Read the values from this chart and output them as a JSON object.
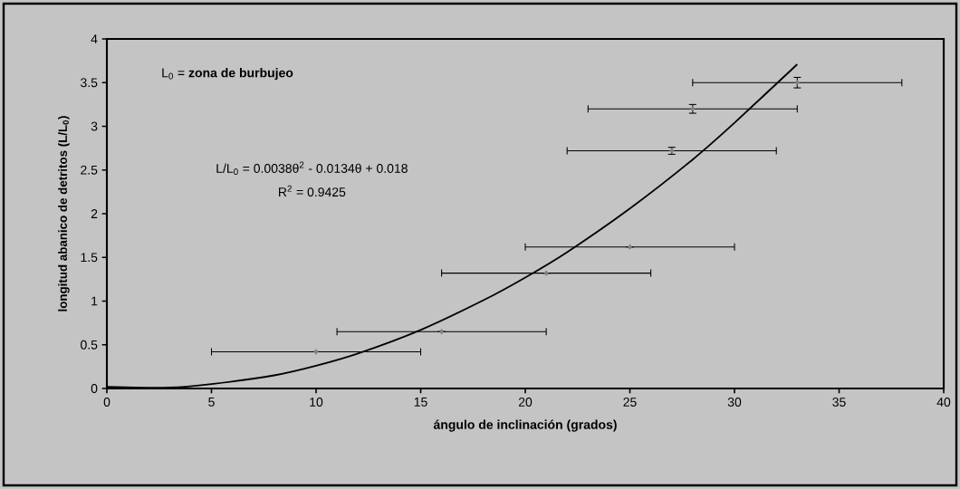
{
  "chart_data": {
    "type": "scatter",
    "xlabel": "ángulo de inclinación (grados)",
    "ylabel": "longitud abanico de detritos (L/L$_{0}$)",
    "xlim": [
      0,
      40
    ],
    "ylim": [
      0,
      4
    ],
    "xticks": [
      0,
      5,
      10,
      15,
      20,
      25,
      30,
      35,
      40
    ],
    "yticks": [
      0,
      0.5,
      1,
      1.5,
      2,
      2.5,
      3,
      3.5,
      4
    ],
    "annotations": [
      "L$_{0}$ = **zona de burbujeo**",
      "L/L$_{0}$ = 0.0038θ$^{2}$ - 0.0134θ + 0.018",
      "R$^{2}$ = 0.9425"
    ],
    "series": [
      {
        "color": "#808080",
        "marker": "diamond",
        "x": [
          10,
          16,
          21,
          25,
          27,
          28,
          33
        ],
        "values": [
          0.42,
          0.65,
          1.32,
          1.62,
          2.72,
          3.2,
          3.5
        ],
        "xerrors": [
          5,
          5,
          5,
          5,
          5,
          5,
          5
        ],
        "errors": [
          null,
          null,
          null,
          null,
          0.04,
          0.05,
          0.06
        ]
      },
      {
        "type": "line",
        "color": "#000000",
        "marker": "none",
        "x": [
          0,
          3,
          5,
          8,
          10,
          12,
          15,
          18,
          20,
          22,
          25,
          28,
          30,
          33
        ],
        "values": [
          0.02,
          0.01,
          0.05,
          0.15,
          0.26,
          0.4,
          0.67,
          1.01,
          1.27,
          1.56,
          2.06,
          2.62,
          3.04,
          3.71
        ]
      }
    ]
  }
}
